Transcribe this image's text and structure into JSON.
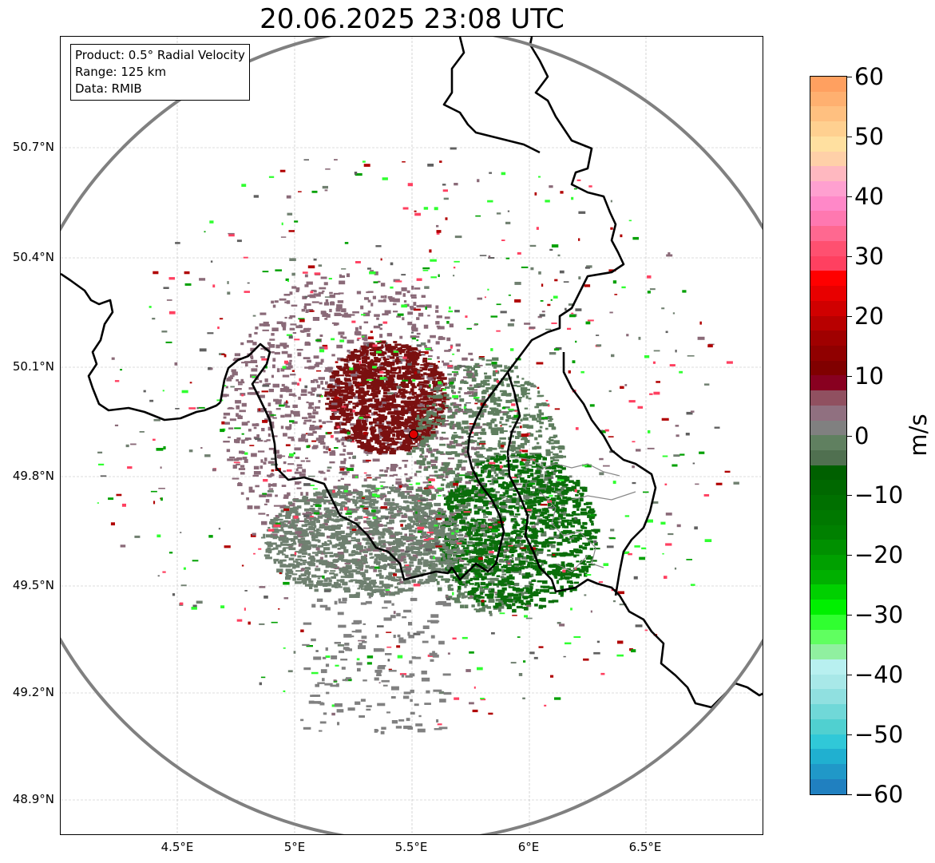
{
  "title": "20.06.2025 23:08 UTC",
  "info": {
    "line1": "Product: 0.5° Radial Velocity",
    "line2": "Range: 125 km",
    "line3": "Data: RMIB"
  },
  "axes": {
    "lat_labels": [
      "50.7°N",
      "50.4°N",
      "50.1°N",
      "49.8°N",
      "49.5°N",
      "49.2°N",
      "48.9°N"
    ],
    "lon_labels": [
      "4.5°E",
      "5°E",
      "5.5°E",
      "6°E",
      "6.5°E"
    ]
  },
  "colorbar": {
    "unit": "m/s",
    "ticks": [
      "60",
      "50",
      "40",
      "30",
      "20",
      "10",
      "0",
      "−10",
      "−20",
      "−30",
      "−40",
      "−50",
      "−60"
    ],
    "colors": [
      "#ffa060",
      "#ffb070",
      "#ffc080",
      "#ffd090",
      "#ffe0a0",
      "#ffd0a8",
      "#ffb8c0",
      "#ffa0d0",
      "#ff88c8",
      "#ff78b0",
      "#ff6890",
      "#ff5070",
      "#ff4060",
      "#ff0000",
      "#e80000",
      "#d00000",
      "#b80000",
      "#a00000",
      "#900000",
      "#800000",
      "#880020",
      "#905060",
      "#907080",
      "#808080",
      "#608060",
      "#507050",
      "#006000",
      "#006800",
      "#007000",
      "#007800",
      "#008000",
      "#009000",
      "#00a000",
      "#00b000",
      "#00d000",
      "#00f000",
      "#30ff30",
      "#60ff60",
      "#90f0a0",
      "#b8f0f0",
      "#a8e8e8",
      "#90e0e0",
      "#70d8d8",
      "#50d0d0",
      "#30c8d8",
      "#20b0d0",
      "#2098c8",
      "#2080c0"
    ]
  },
  "radar_site": {
    "lat": 49.91,
    "lon": 5.5,
    "color": "#e00000"
  }
}
